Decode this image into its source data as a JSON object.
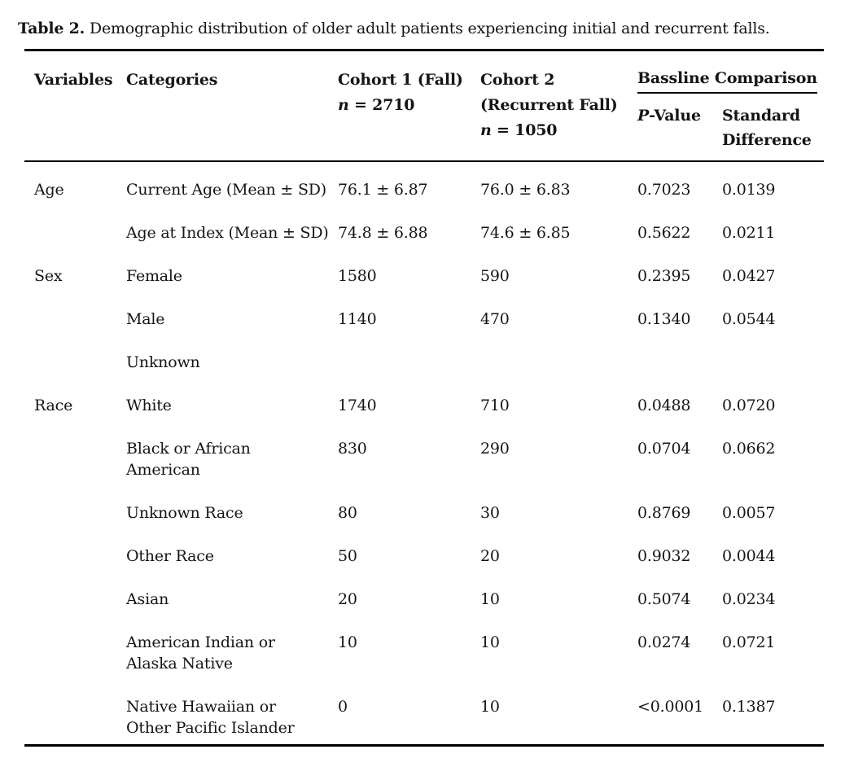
{
  "page": {
    "background_color": "#ffffff",
    "text_color": "#151515",
    "rule_color": "#000000"
  },
  "caption": {
    "label": "Table 2.",
    "text": " Demographic distribution of older adult patients experiencing initial and recurrent falls."
  },
  "table": {
    "headers": {
      "variables": "Variables",
      "categories": "Categories",
      "cohort1_title": "Cohort 1 (Fall)",
      "cohort1_n_symbol": "n",
      "cohort1_n_value": " = 2710",
      "cohort2_title_line1": "Cohort 2",
      "cohort2_title_line2": "(Recurrent Fall)",
      "cohort2_n_symbol": "n",
      "cohort2_n_value": " = 1050",
      "comparison_group": "Bassline Comparison",
      "p_value_symbol": "P",
      "p_value_rest": "-Value",
      "std_diff_line1": "Standard",
      "std_diff_line2": "Difference"
    },
    "rows": [
      {
        "variable": "Age",
        "category": [
          "Current Age (Mean ± SD)"
        ],
        "cohort1": "76.1 ± 6.87",
        "cohort2": "76.0 ± 6.83",
        "p_value": "0.7023",
        "std_diff": "0.0139"
      },
      {
        "variable": "",
        "category": [
          "Age at Index (Mean ± SD)"
        ],
        "cohort1": "74.8 ± 6.88",
        "cohort2": "74.6 ± 6.85",
        "p_value": "0.5622",
        "std_diff": "0.0211"
      },
      {
        "variable": "Sex",
        "category": [
          "Female"
        ],
        "cohort1": "1580",
        "cohort2": "590",
        "p_value": "0.2395",
        "std_diff": "0.0427"
      },
      {
        "variable": "",
        "category": [
          "Male"
        ],
        "cohort1": "1140",
        "cohort2": "470",
        "p_value": "0.1340",
        "std_diff": "0.0544"
      },
      {
        "variable": "",
        "category": [
          "Unknown"
        ],
        "cohort1": "",
        "cohort2": "",
        "p_value": "",
        "std_diff": ""
      },
      {
        "variable": "Race",
        "category": [
          "White"
        ],
        "cohort1": "1740",
        "cohort2": "710",
        "p_value": "0.0488",
        "std_diff": "0.0720"
      },
      {
        "variable": "",
        "category": [
          "Black or African",
          "American"
        ],
        "cohort1": "830",
        "cohort2": "290",
        "p_value": "0.0704",
        "std_diff": "0.0662"
      },
      {
        "variable": "",
        "category": [
          "Unknown Race"
        ],
        "cohort1": "80",
        "cohort2": "30",
        "p_value": "0.8769",
        "std_diff": "0.0057"
      },
      {
        "variable": "",
        "category": [
          "Other Race"
        ],
        "cohort1": "50",
        "cohort2": "20",
        "p_value": "0.9032",
        "std_diff": "0.0044"
      },
      {
        "variable": "",
        "category": [
          "Asian"
        ],
        "cohort1": "20",
        "cohort2": "10",
        "p_value": "0.5074",
        "std_diff": "0.0234"
      },
      {
        "variable": "",
        "category": [
          "American Indian or",
          "Alaska Native"
        ],
        "cohort1": "10",
        "cohort2": "10",
        "p_value": "0.0274",
        "std_diff": "0.0721"
      },
      {
        "variable": "",
        "category": [
          "Native Hawaiian or",
          "Other Pacific Islander"
        ],
        "cohort1": "0",
        "cohort2": "10",
        "p_value": "<0.0001",
        "std_diff": "0.1387"
      }
    ]
  }
}
